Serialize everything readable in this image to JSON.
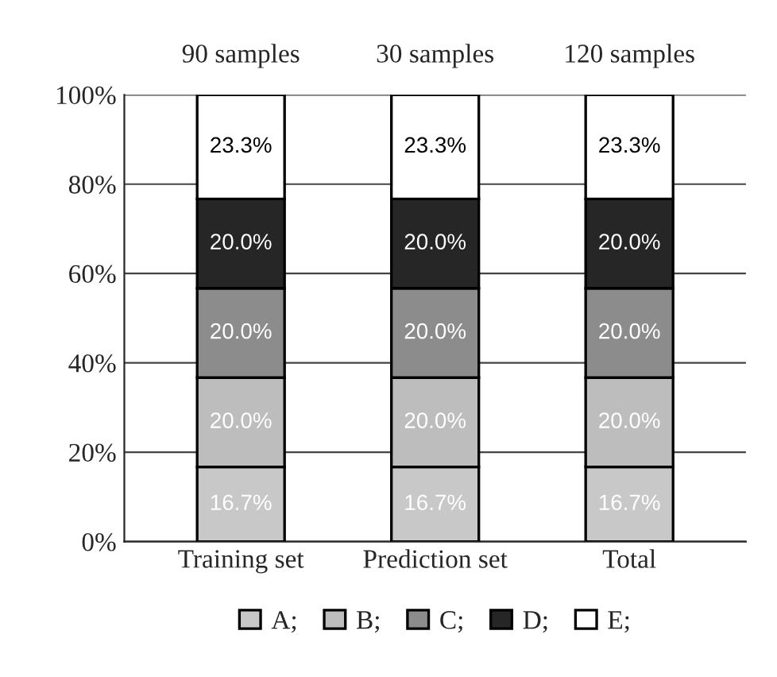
{
  "chart_data": {
    "type": "bar",
    "stacked": true,
    "categories": [
      "Training set",
      "Prediction set",
      "Total"
    ],
    "series": [
      {
        "name": "A;",
        "color": "#c8c8c8",
        "values": [
          16.7,
          16.7,
          16.7
        ],
        "value_labels": [
          "16.7%",
          "16.7%",
          "16.7%"
        ]
      },
      {
        "name": "B;",
        "color": "#bdbdbd",
        "values": [
          20.0,
          20.0,
          20.0
        ],
        "value_labels": [
          "20.0%",
          "20.0%",
          "20.0%"
        ]
      },
      {
        "name": "C;",
        "color": "#8c8c8c",
        "values": [
          20.0,
          20.0,
          20.0
        ],
        "value_labels": [
          "20.0%",
          "20.0%",
          "20.0%"
        ]
      },
      {
        "name": "D;",
        "color": "#262626",
        "values": [
          20.0,
          20.0,
          20.0
        ],
        "value_labels": [
          "20.0%",
          "20.0%",
          "20.0%"
        ]
      },
      {
        "name": "E;",
        "color": "#ffffff",
        "values": [
          23.3,
          23.3,
          23.3
        ],
        "value_labels": [
          "23.3%",
          "23.3%",
          "23.3%"
        ]
      }
    ],
    "ylim": [
      0,
      100
    ],
    "yticks": [
      {
        "value": 0,
        "label": "0%"
      },
      {
        "value": 20,
        "label": "20%"
      },
      {
        "value": 40,
        "label": "40%"
      },
      {
        "value": 60,
        "label": "60%"
      },
      {
        "value": 80,
        "label": "80%"
      },
      {
        "value": 100,
        "label": "100%"
      }
    ],
    "grid": "y",
    "legend": "bottom",
    "annotations": [
      "90 samples",
      "30 samples",
      "120 samples"
    ]
  }
}
